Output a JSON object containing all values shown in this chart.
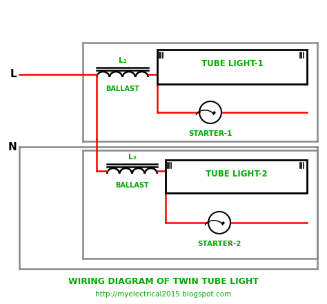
{
  "title": "WIRING DIAGRAM OF TWIN TUBE LIGHT",
  "url": "http://myelectrical2015.blogspot.com",
  "bg_color": "#ffffff",
  "wire_red": "#ff0000",
  "wire_black": "#000000",
  "wire_gray": "#888888",
  "green": "#00aa00",
  "L_label": "L",
  "N_label": "N",
  "L1_label": "L₁",
  "L2_label": "L₂",
  "ballast_label": "BALLAST",
  "tube1_label": "TUBE LIGHT-1",
  "tube2_label": "TUBE LIGHT-2",
  "starter1_label": "STARTER-1",
  "starter2_label": "STARTER-2",
  "figw": 4.74,
  "figh": 4.41,
  "dpi": 100
}
